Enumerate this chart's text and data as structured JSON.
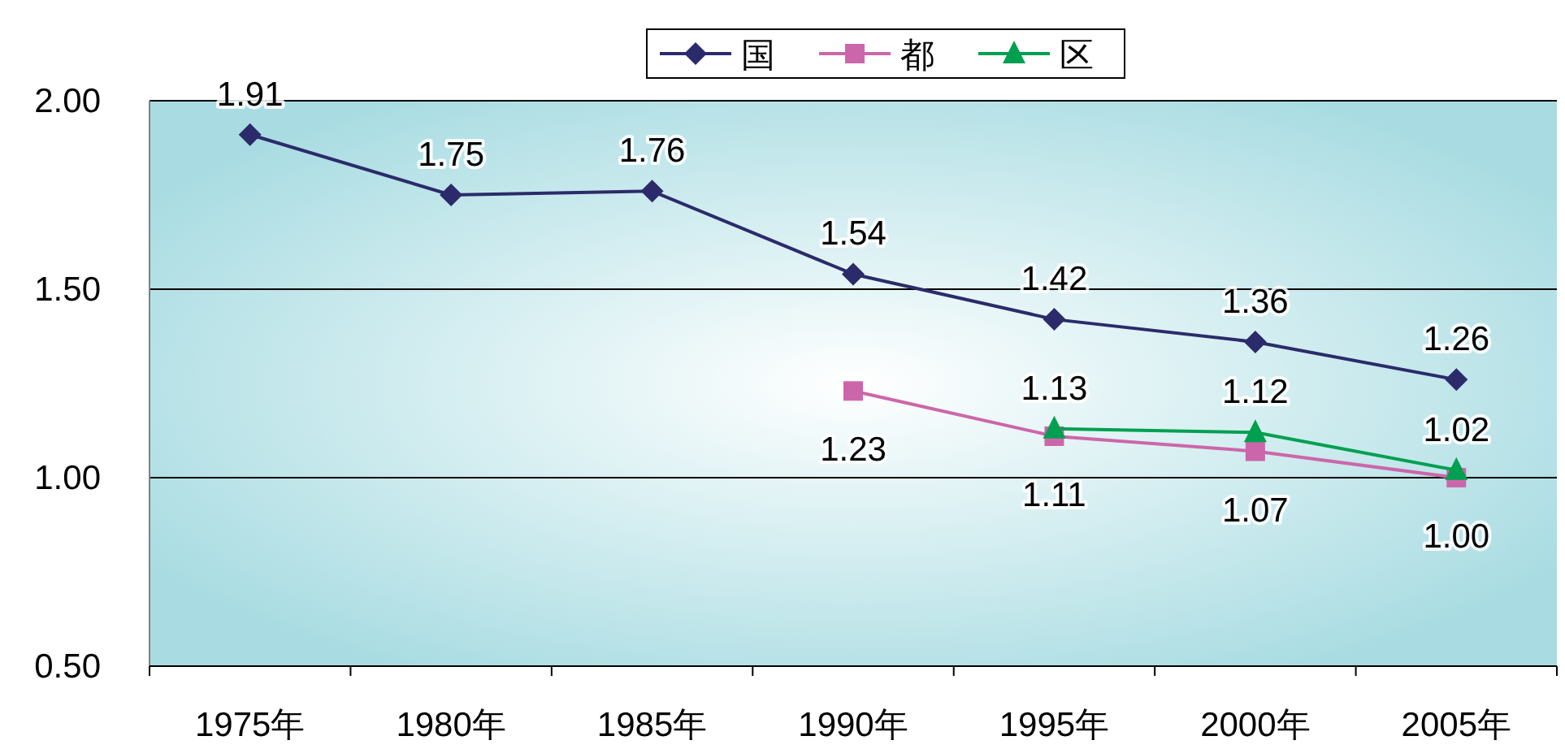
{
  "chart_data": {
    "type": "line",
    "categories": [
      "1975年",
      "1980年",
      "1985年",
      "1990年",
      "1995年",
      "2000年",
      "2005年"
    ],
    "series": [
      {
        "name": "国",
        "color": "#2b2b6b",
        "marker": "diamond",
        "values": [
          1.91,
          1.75,
          1.76,
          1.54,
          1.42,
          1.36,
          1.26
        ],
        "value_labels": [
          "1.91",
          "1.75",
          "1.76",
          "1.54",
          "1.42",
          "1.36",
          "1.26"
        ]
      },
      {
        "name": "都",
        "color": "#cc66aa",
        "marker": "square",
        "values": [
          null,
          null,
          null,
          1.23,
          1.11,
          1.07,
          1.0
        ],
        "value_labels": [
          null,
          null,
          null,
          "1.23",
          "1.11",
          "1.07",
          "1.00"
        ]
      },
      {
        "name": "区",
        "color": "#00a050",
        "marker": "triangle",
        "values": [
          null,
          null,
          null,
          null,
          1.13,
          1.12,
          1.02
        ],
        "value_labels": [
          null,
          null,
          null,
          null,
          "1.13",
          "1.12",
          "1.02"
        ]
      }
    ],
    "ylim": [
      0.5,
      2.0
    ],
    "yticks": [
      {
        "value": 0.5,
        "label": "0.50"
      },
      {
        "value": 1.0,
        "label": "1.00"
      },
      {
        "value": 1.5,
        "label": "1.50"
      },
      {
        "value": 2.0,
        "label": "2.00"
      }
    ],
    "grid": "y",
    "legend": "top"
  }
}
